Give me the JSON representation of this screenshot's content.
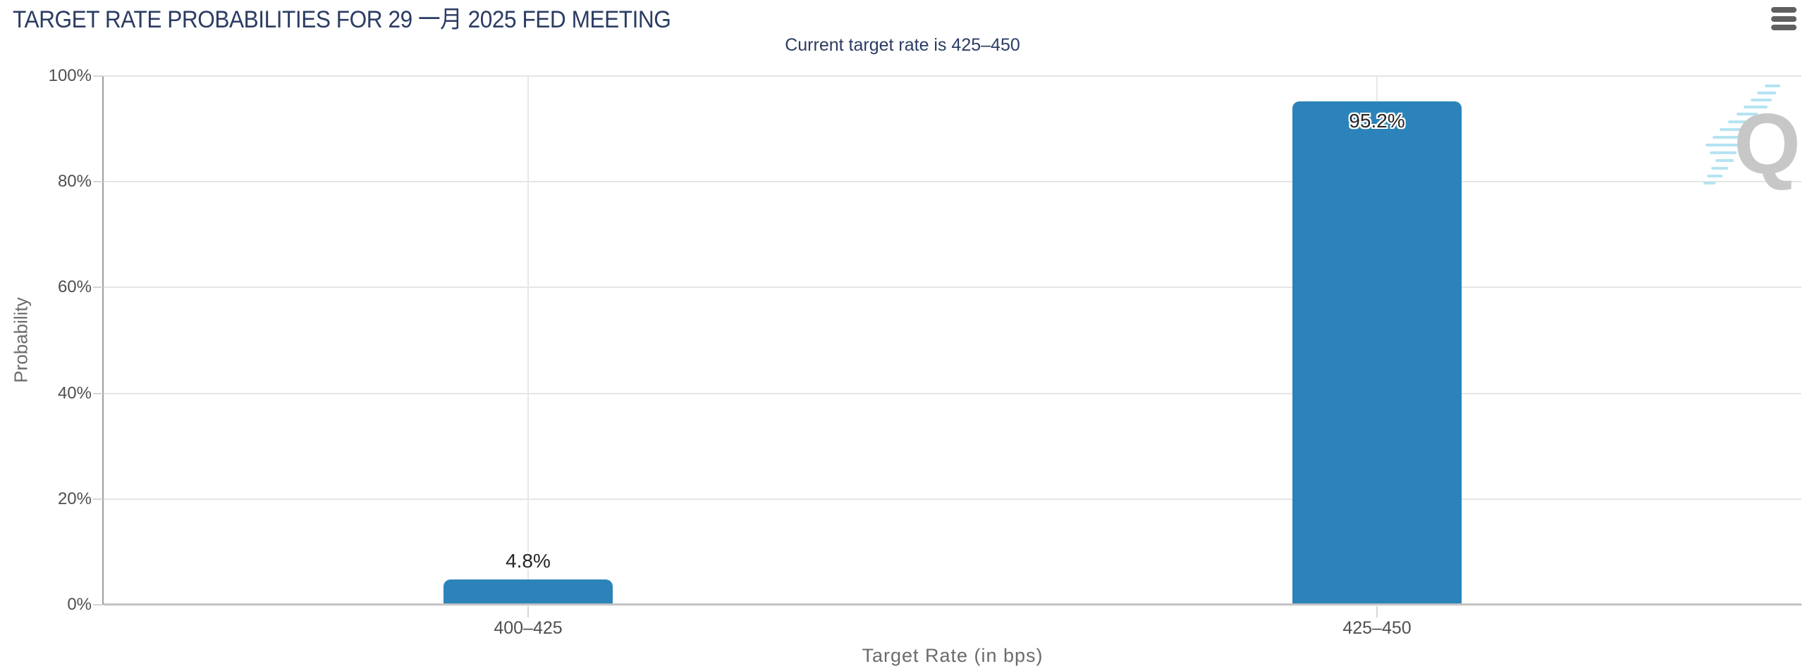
{
  "header": {
    "title": "TARGET RATE PROBABILITIES FOR 29 一月 2025 FED MEETING",
    "subtitle": "Current target rate is 425–450",
    "menu_icon": "hamburger-icon"
  },
  "watermark": {
    "letter": "Q"
  },
  "colors": {
    "bar": "#2b83b9",
    "title_text": "#2b3c63",
    "tick_label": "#4f4f4f",
    "axis_title": "#6b6b6b",
    "gridline": "#e5e5e5",
    "watermark_q": "#c7c7c7",
    "watermark_dashes": "#b5e3f2"
  },
  "chart_data": {
    "type": "bar",
    "title": "TARGET RATE PROBABILITIES FOR 29 一月 2025 FED MEETING",
    "subtitle": "Current target rate is 425–450",
    "categories": [
      "400–425",
      "425–450"
    ],
    "values": [
      4.8,
      95.2
    ],
    "value_labels": [
      "4.8%",
      "95.2%"
    ],
    "xlabel": "Target Rate (in bps)",
    "ylabel": "Probability",
    "ylim": [
      0,
      100
    ],
    "yticks": [
      0,
      20,
      40,
      60,
      80,
      100
    ],
    "ytick_labels": [
      "0%",
      "20%",
      "40%",
      "60%",
      "80%",
      "100%"
    ],
    "grid": true,
    "legend": "none",
    "bar_color": "#2b83b9"
  }
}
